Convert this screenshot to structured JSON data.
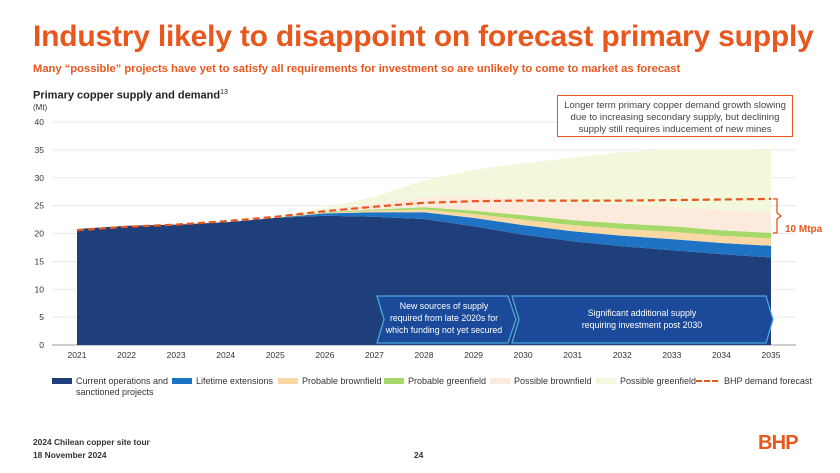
{
  "slide": {
    "title": "Industry likely to disappoint on forecast primary supply",
    "subtitle": "Many “possible” projects have yet to satisfy all requirements for investment so are unlikely to come to market as forecast",
    "footer_line1": "2024 Chilean copper site tour",
    "footer_line2": "18 November 2024",
    "page_number": "24",
    "logo_text": "BHP",
    "accent_color": "#e8571e"
  },
  "chart_data": {
    "type": "area",
    "title": "Primary copper supply and demand",
    "title_superscript": "13",
    "ylabel": "(Mt)",
    "xlabel": "",
    "ylim": [
      0,
      40
    ],
    "yticks": [
      0,
      5,
      10,
      15,
      20,
      25,
      30,
      35,
      40
    ],
    "grid": true,
    "legend_position": "bottom",
    "x": [
      2021,
      2022,
      2023,
      2024,
      2025,
      2026,
      2027,
      2028,
      2029,
      2030,
      2031,
      2032,
      2033,
      2034,
      2035
    ],
    "series": [
      {
        "name": "Current operations and sanctioned projects",
        "color": "#1e3f7a",
        "stacked": true,
        "values": [
          20.8,
          21.4,
          21.6,
          22.0,
          22.8,
          23.2,
          23.0,
          22.6,
          21.3,
          19.8,
          18.6,
          17.7,
          17.0,
          16.3,
          15.7
        ]
      },
      {
        "name": "Lifetime extensions",
        "color": "#1f73c4",
        "stacked": true,
        "values": [
          0,
          0,
          0,
          0,
          0,
          0.4,
          0.8,
          1.2,
          1.5,
          1.7,
          1.8,
          1.9,
          2.0,
          2.0,
          2.1
        ]
      },
      {
        "name": "Probable brownfield",
        "color": "#f9d8a6",
        "stacked": true,
        "values": [
          0,
          0,
          0,
          0,
          0,
          0.1,
          0.3,
          0.5,
          0.7,
          1.0,
          1.1,
          1.2,
          1.3,
          1.3,
          1.3
        ]
      },
      {
        "name": "Probable greenfield",
        "color": "#a6d96a",
        "stacked": true,
        "values": [
          0,
          0,
          0,
          0,
          0,
          0.1,
          0.2,
          0.4,
          0.6,
          0.8,
          0.9,
          1.0,
          1.0,
          1.0,
          1.0
        ]
      },
      {
        "name": "Possible brownfield",
        "color": "#fcebdd",
        "stacked": true,
        "values": [
          0,
          0,
          0,
          0,
          0.1,
          0.5,
          1.1,
          1.8,
          2.5,
          3.0,
          3.2,
          3.4,
          3.5,
          3.6,
          3.7
        ]
      },
      {
        "name": "Possible greenfield",
        "color": "#f3f8dc",
        "stacked": true,
        "values": [
          0,
          0,
          0,
          0,
          0.1,
          0.3,
          1.2,
          3.0,
          4.8,
          6.3,
          8.0,
          9.4,
          10.4,
          11.0,
          11.1
        ]
      },
      {
        "name": "BHP demand forecast",
        "color": "#e8571e",
        "style": "dashed-line",
        "values": [
          20.6,
          21.2,
          21.6,
          22.2,
          23.0,
          24.0,
          24.8,
          25.5,
          25.8,
          25.9,
          25.9,
          25.9,
          26.0,
          26.1,
          26.2
        ]
      }
    ],
    "annotations": {
      "callout_top": "Longer term primary copper demand growth slowing due to increasing secondary supply, but declining supply still requires inducement of new mines",
      "arrow_1": [
        "New sources of supply",
        "required  from late 2020s for",
        "which funding not yet secured"
      ],
      "arrow_2": [
        "Significant additional supply",
        "requiring investment post 2030"
      ],
      "gap_label": "10 Mtpa"
    }
  }
}
